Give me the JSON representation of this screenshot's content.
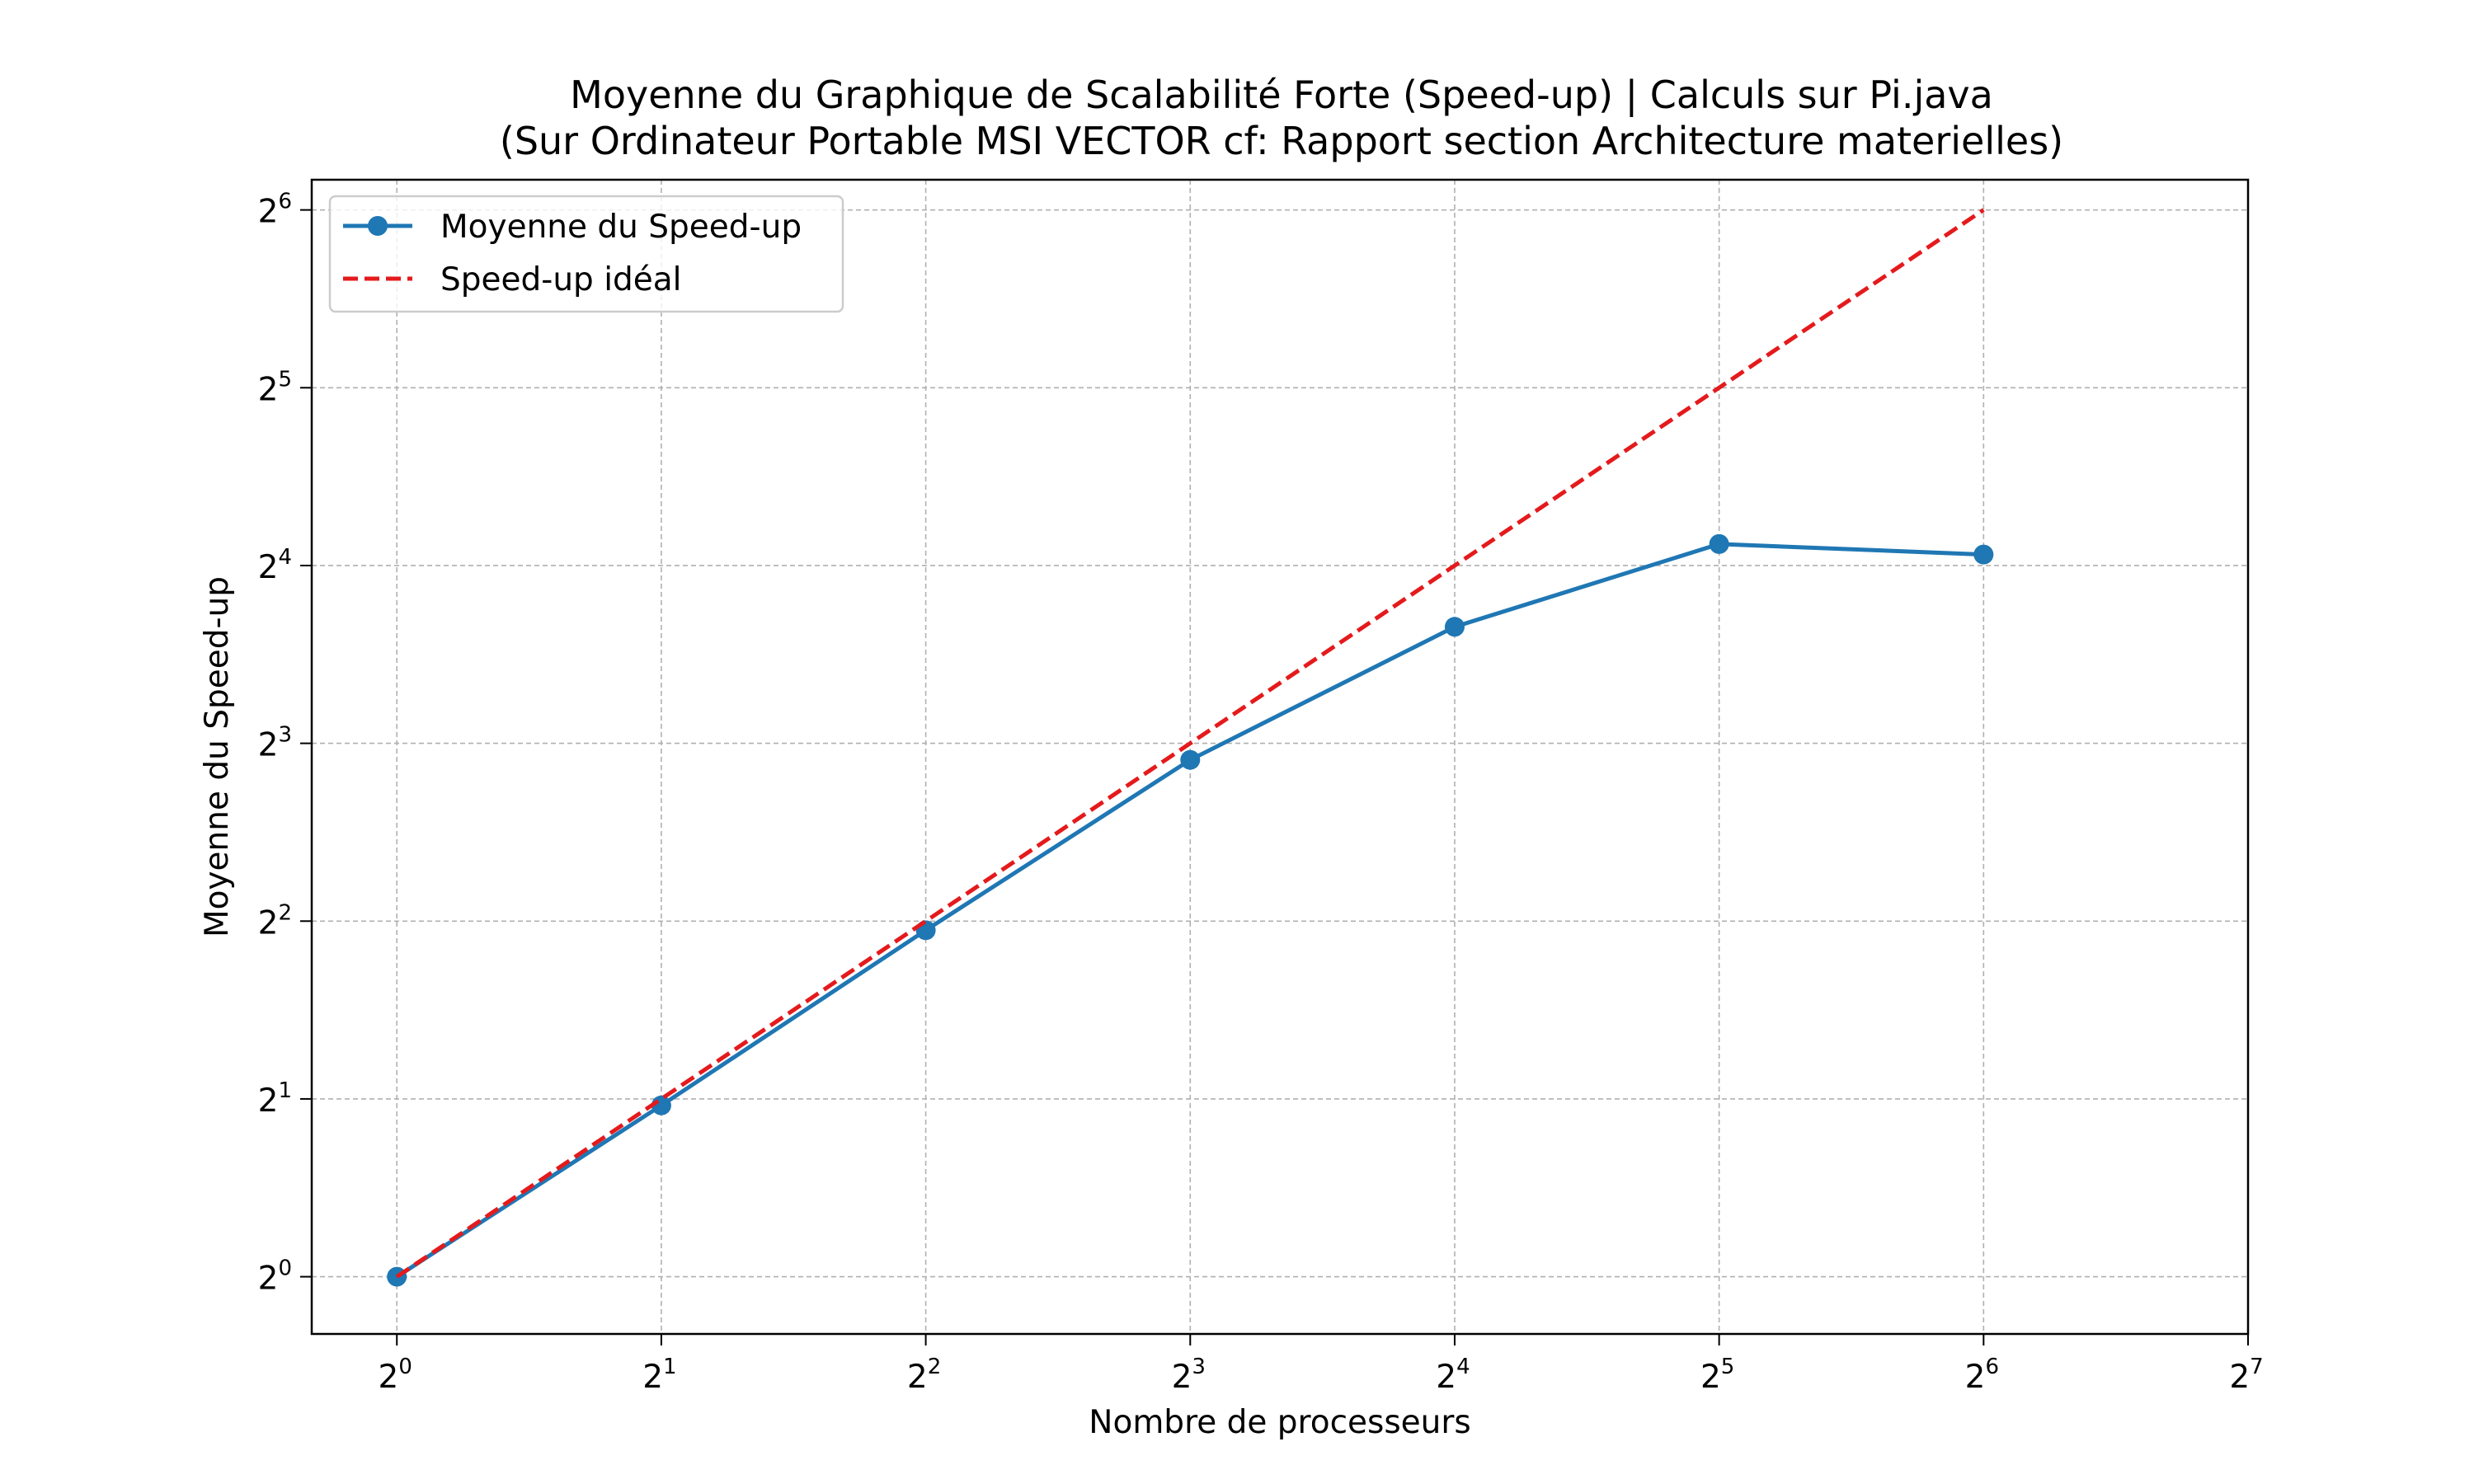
{
  "chart_data": {
    "type": "line",
    "title_line1": "Moyenne du Graphique de Scalabilité Forte (Speed-up) | Calculs sur Pi.java",
    "title_line2": "(Sur Ordinateur Portable MSI VECTOR cf: Rapport section Architecture materielles)",
    "xlabel": "Nombre de processeurs",
    "ylabel": "Moyenne du Speed-up",
    "x_scale": "log2",
    "y_scale": "log2",
    "xlim": [
      0.8,
      128
    ],
    "ylim": [
      0.8,
      72
    ],
    "x_ticks": [
      {
        "base": "2",
        "exp": "0",
        "value": 1
      },
      {
        "base": "2",
        "exp": "1",
        "value": 2
      },
      {
        "base": "2",
        "exp": "2",
        "value": 4
      },
      {
        "base": "2",
        "exp": "3",
        "value": 8
      },
      {
        "base": "2",
        "exp": "4",
        "value": 16
      },
      {
        "base": "2",
        "exp": "5",
        "value": 32
      },
      {
        "base": "2",
        "exp": "6",
        "value": 64
      },
      {
        "base": "2",
        "exp": "7",
        "value": 128
      }
    ],
    "y_ticks": [
      {
        "base": "2",
        "exp": "0",
        "value": 1
      },
      {
        "base": "2",
        "exp": "1",
        "value": 2
      },
      {
        "base": "2",
        "exp": "2",
        "value": 4
      },
      {
        "base": "2",
        "exp": "3",
        "value": 8
      },
      {
        "base": "2",
        "exp": "4",
        "value": 16
      },
      {
        "base": "2",
        "exp": "5",
        "value": 32
      },
      {
        "base": "2",
        "exp": "6",
        "value": 64
      }
    ],
    "grid": true,
    "legend_position": "top-left",
    "series": [
      {
        "name": "Moyenne du Speed-up",
        "style": "solid-marker",
        "color": "#1f77b4",
        "x": [
          1,
          2,
          4,
          8,
          16,
          32,
          64
        ],
        "y": [
          1.0,
          1.95,
          3.86,
          7.5,
          12.6,
          17.4,
          16.7
        ]
      },
      {
        "name": "Speed-up idéal",
        "style": "dashed",
        "color": "#e41a1c",
        "x": [
          1,
          2,
          4,
          8,
          16,
          32,
          64
        ],
        "y": [
          1,
          2,
          4,
          8,
          16,
          32,
          64
        ]
      }
    ]
  }
}
